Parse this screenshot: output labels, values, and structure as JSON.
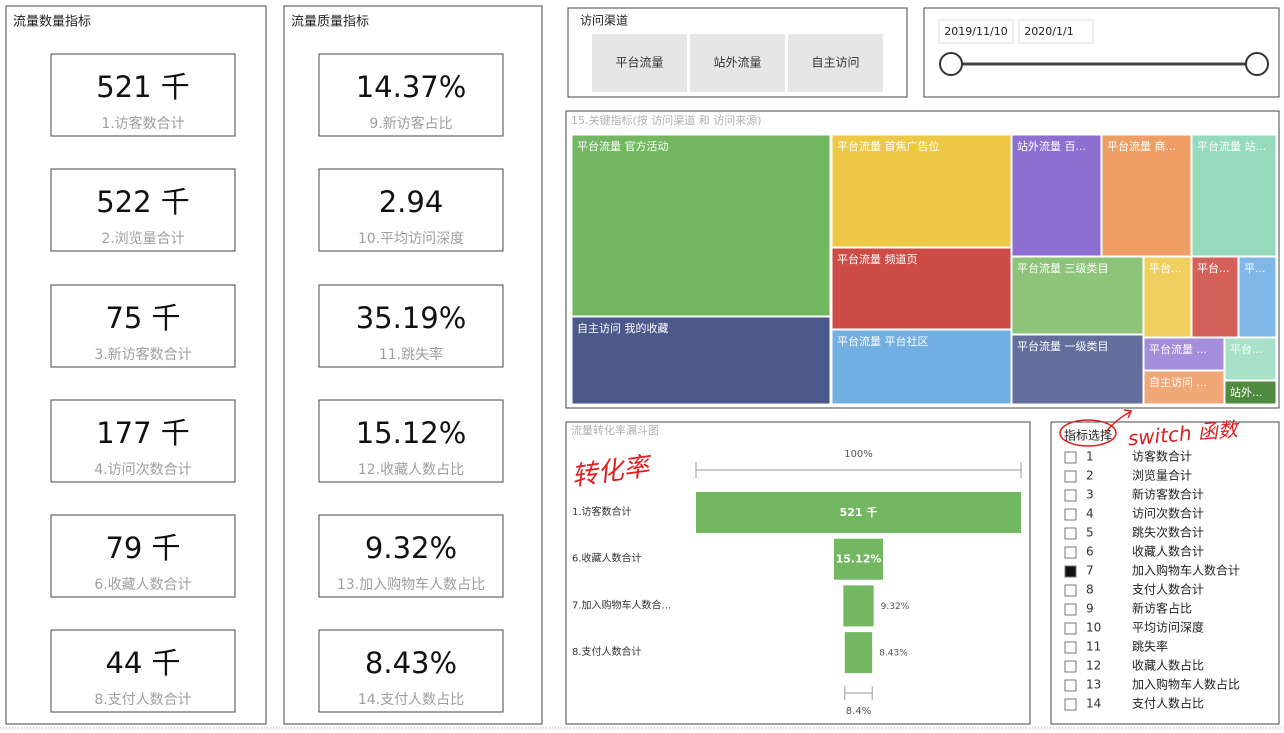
{
  "panels": {
    "quantity": {
      "title": "流量数量指标",
      "cards": [
        {
          "value": "521 千",
          "label": "1.访客数合计"
        },
        {
          "value": "522 千",
          "label": "2.浏览量合计"
        },
        {
          "value": "75 千",
          "label": "3.新访客数合计"
        },
        {
          "value": "177 千",
          "label": "4.访问次数合计"
        },
        {
          "value": "79 千",
          "label": "6.收藏人数合计"
        },
        {
          "value": "44 千",
          "label": "8.支付人数合计"
        }
      ]
    },
    "quality": {
      "title": "流量质量指标",
      "cards": [
        {
          "value": "14.37%",
          "label": "9.新访客占比"
        },
        {
          "value": "2.94",
          "label": "10.平均访问深度"
        },
        {
          "value": "35.19%",
          "label": "11.跳失率"
        },
        {
          "value": "15.12%",
          "label": "12.收藏人数占比"
        },
        {
          "value": "9.32%",
          "label": "13.加入购物车人数占比"
        },
        {
          "value": "8.43%",
          "label": "14.支付人数占比"
        }
      ]
    }
  },
  "channel_slicer": {
    "title": "访问渠道",
    "options": [
      "平台流量",
      "站外流量",
      "自主访问"
    ]
  },
  "date_slicer": {
    "start": "2019/11/10",
    "end": "2020/1/1"
  },
  "treemap": {
    "title": "15.关键指标(按 访问渠道 和 访问来源)",
    "cells": [
      "平台流量 官方活动",
      "自主访问 我的收藏",
      "平台流量 首焦广告位",
      "平台流量 频道页",
      "平台流量 平台社区",
      "站外流量 百...",
      "平台流量 商...",
      "平台流量 站...",
      "平台流量 三级类目",
      "平台流量 一级类目",
      "平台...",
      "平台...",
      "平...",
      "平台流量 ...",
      "平台...",
      "自主访问 ...",
      "站外..."
    ]
  },
  "funnel": {
    "title": "流量转化率漏斗图",
    "top_label": "100%",
    "bottom_label": "8.4%",
    "stages": [
      {
        "label": "1.访客数合计",
        "percent": 100,
        "text": "521 千"
      },
      {
        "label": "6.收藏人数合计",
        "percent": 15.12,
        "text": "15.12%"
      },
      {
        "label": "7.加入购物车人数合...",
        "percent": 9.32,
        "text": "9.32%"
      },
      {
        "label": "8.支付人数合计",
        "percent": 8.43,
        "text": "8.43%"
      }
    ]
  },
  "indicator_slicer": {
    "title": "指标选择",
    "selected": "7",
    "items": [
      {
        "number": "1",
        "label": "访客数合计"
      },
      {
        "number": "2",
        "label": "浏览量合计"
      },
      {
        "number": "3",
        "label": "新访客数合计"
      },
      {
        "number": "4",
        "label": "访问次数合计"
      },
      {
        "number": "5",
        "label": "跳失次数合计"
      },
      {
        "number": "6",
        "label": "收藏人数合计"
      },
      {
        "number": "7",
        "label": "加入购物车人数合计"
      },
      {
        "number": "8",
        "label": "支付人数合计"
      },
      {
        "number": "9",
        "label": "新访客占比"
      },
      {
        "number": "10",
        "label": "平均访问深度"
      },
      {
        "number": "11",
        "label": "跳失率"
      },
      {
        "number": "12",
        "label": "收藏人数占比"
      },
      {
        "number": "13",
        "label": "加入购物车人数占比"
      },
      {
        "number": "14",
        "label": "支付人数占比"
      }
    ]
  },
  "annotations": [
    "转化率",
    "switch 函数"
  ]
}
